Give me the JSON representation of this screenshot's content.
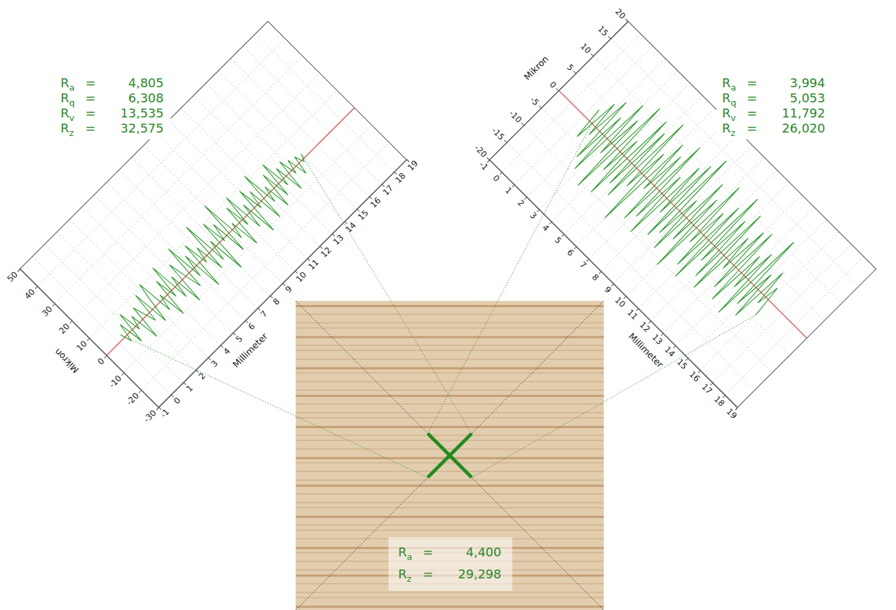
{
  "chart_data": [
    {
      "type": "line",
      "x_label": "Millimeter",
      "y_label": "Mikron",
      "xlim": [
        -1,
        19
      ],
      "xticks": [
        -1,
        0,
        1,
        2,
        3,
        4,
        5,
        6,
        7,
        8,
        9,
        10,
        11,
        12,
        13,
        14,
        15,
        16,
        17,
        18,
        19
      ],
      "ylim": [
        -30,
        50
      ],
      "yticks": [
        -30,
        -20,
        -10,
        0,
        10,
        20,
        30,
        40,
        50
      ],
      "grid": true,
      "color": "#229a22",
      "mean_line": 0,
      "x": [
        0.4,
        0.6,
        0.8,
        1.0,
        1.2,
        1.4,
        1.6,
        1.8,
        2.0,
        2.2,
        2.4,
        2.6,
        2.8,
        3.0,
        3.2,
        3.4,
        3.6,
        3.8,
        4.0,
        4.2,
        4.4,
        4.6,
        4.8,
        5.0,
        5.2,
        5.4,
        5.6,
        5.8,
        6.0,
        6.2,
        6.4,
        6.6,
        6.8,
        7.0,
        7.2,
        7.4,
        7.6,
        7.8,
        8.0,
        8.2,
        8.4,
        8.6,
        8.8,
        9.0,
        9.2,
        9.4,
        9.6,
        9.8,
        10.0,
        10.2,
        10.4,
        10.6,
        10.8,
        11.0,
        11.2,
        11.4,
        11.6,
        11.8,
        12.0,
        12.2,
        12.4,
        12.6,
        12.8,
        13.0,
        13.2,
        13.4,
        13.6,
        13.8,
        14.0,
        14.2,
        14.4,
        14.6,
        14.8,
        15.0
      ],
      "values": [
        2,
        -3,
        5,
        -6,
        8,
        -2,
        4,
        -9,
        6,
        1,
        -4,
        9,
        -7,
        3,
        11,
        -5,
        2,
        -10,
        7,
        -3,
        12,
        -6,
        4,
        -11,
        8,
        0,
        -7,
        13,
        -4,
        6,
        -12,
        9,
        -2,
        5,
        -8,
        14,
        -6,
        3,
        -13.5,
        10,
        -1,
        7,
        -9,
        15,
        -5,
        2,
        -11,
        8,
        -3,
        11,
        -7,
        4,
        -12,
        9,
        -2,
        6,
        -10,
        12,
        -4,
        3,
        -9,
        7,
        -6,
        10,
        -3,
        5,
        -8,
        6,
        -2,
        4,
        -5,
        3,
        -1,
        2
      ],
      "stats": [
        {
          "symbol": "R",
          "sub": "a",
          "sign": "=",
          "value": 4.805,
          "label": "4,805"
        },
        {
          "symbol": "R",
          "sub": "q",
          "sign": "=",
          "value": 6.308,
          "label": "6,308"
        },
        {
          "symbol": "R",
          "sub": "v",
          "sign": "=",
          "value": 13.535,
          "label": "13,535"
        },
        {
          "symbol": "R",
          "sub": "z",
          "sign": "=",
          "value": 32.575,
          "label": "32,575"
        }
      ]
    },
    {
      "type": "line",
      "x_label": "Millimeter",
      "y_label": "Mikron",
      "xlim": [
        -1,
        19
      ],
      "xticks": [
        -1,
        0,
        1,
        2,
        3,
        4,
        5,
        6,
        7,
        8,
        9,
        10,
        11,
        12,
        13,
        14,
        15,
        16,
        17,
        18,
        19
      ],
      "ylim": [
        -20,
        20
      ],
      "yticks": [
        -20,
        -15,
        -10,
        -5,
        0,
        5,
        10,
        15,
        20
      ],
      "grid": true,
      "color": "#229a22",
      "mean_line": 0,
      "x": [
        1.4,
        1.6,
        1.8,
        2.0,
        2.2,
        2.4,
        2.6,
        2.8,
        3.0,
        3.2,
        3.4,
        3.6,
        3.8,
        4.0,
        4.2,
        4.4,
        4.6,
        4.8,
        5.0,
        5.2,
        5.4,
        5.6,
        5.8,
        6.0,
        6.2,
        6.4,
        6.6,
        6.8,
        7.0,
        7.2,
        7.4,
        7.6,
        7.8,
        8.0,
        8.2,
        8.4,
        8.6,
        8.8,
        9.0,
        9.2,
        9.4,
        9.6,
        9.8,
        10.0,
        10.2,
        10.4,
        10.6,
        10.8,
        11.0,
        11.2,
        11.4,
        11.6,
        11.8,
        12.0,
        12.2,
        12.4,
        12.6,
        12.8,
        13.0,
        13.2,
        13.4,
        13.6,
        13.8,
        14.0,
        14.2,
        14.4,
        14.6,
        14.8,
        15.0,
        15.2,
        15.4,
        15.6,
        15.8,
        16.0
      ],
      "values": [
        3,
        -4,
        6,
        -2,
        8,
        -7,
        5,
        -9,
        10,
        -3,
        7,
        -11,
        12,
        -5,
        4,
        -10,
        11,
        -6,
        9,
        -8,
        13,
        -4,
        6,
        -11.8,
        10,
        -2,
        8,
        -9,
        12,
        -7,
        5,
        -10,
        9,
        -3,
        11,
        -8,
        14,
        -6,
        4,
        -9,
        10,
        -5,
        7,
        -11,
        12,
        -3,
        6,
        -8,
        9,
        -10,
        13,
        -4,
        8,
        -7,
        11,
        -9,
        6,
        -2,
        9,
        -6,
        10,
        -8,
        5,
        -3,
        7,
        -9,
        12,
        -5,
        4,
        -7,
        6,
        -2,
        3,
        -4
      ],
      "stats": [
        {
          "symbol": "R",
          "sub": "a",
          "sign": "=",
          "value": 3.994,
          "label": "3,994"
        },
        {
          "symbol": "R",
          "sub": "q",
          "sign": "=",
          "value": 5.053,
          "label": "5,053"
        },
        {
          "symbol": "R",
          "sub": "v",
          "sign": "=",
          "value": 11.792,
          "label": "11,792"
        },
        {
          "symbol": "R",
          "sub": "z",
          "sign": "=",
          "value": 26.02,
          "label": "26,020"
        }
      ]
    }
  ],
  "photo": {
    "stats": [
      {
        "symbol": "R",
        "sub": "a",
        "sign": "=",
        "value": 4.4,
        "label": "4,400"
      },
      {
        "symbol": "R",
        "sub": "z",
        "sign": "=",
        "value": 29.298,
        "label": "29,298"
      }
    ]
  }
}
